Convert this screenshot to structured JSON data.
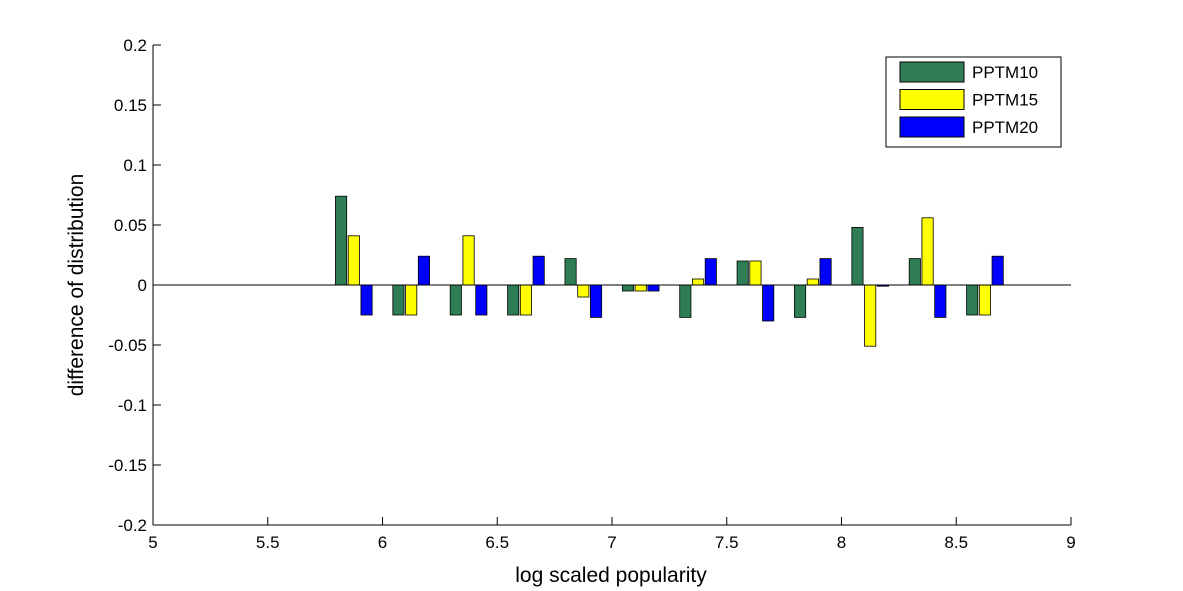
{
  "chart_data": {
    "type": "bar",
    "title": "",
    "xlabel": "log scaled popularity",
    "ylabel": "difference of distribution",
    "xlim": [
      5,
      9
    ],
    "ylim": [
      -0.2,
      0.2
    ],
    "x_ticks": [
      "5",
      "5.5",
      "6",
      "6.5",
      "7",
      "7.5",
      "8",
      "8.5",
      "9"
    ],
    "y_ticks": [
      "-0.2",
      "-0.15",
      "-0.1",
      "-0.05",
      "0",
      "0.05",
      "0.1",
      "0.15",
      "0.2"
    ],
    "grid": false,
    "legend_position": "top-right",
    "x": [
      5.875,
      6.125,
      6.375,
      6.625,
      6.875,
      7.125,
      7.375,
      7.625,
      7.875,
      8.125,
      8.375,
      8.625
    ],
    "series": [
      {
        "name": "PPTM10",
        "color": "#2e7d55",
        "values": [
          0.074,
          -0.025,
          -0.025,
          -0.025,
          0.022,
          -0.005,
          -0.027,
          0.02,
          -0.027,
          0.048,
          0.022,
          -0.025
        ]
      },
      {
        "name": "PPTM15",
        "color": "#ffff00",
        "values": [
          0.041,
          -0.025,
          0.041,
          -0.025,
          -0.01,
          -0.005,
          0.005,
          0.02,
          0.005,
          -0.051,
          0.056,
          -0.025
        ]
      },
      {
        "name": "PPTM20",
        "color": "#0000ff",
        "values": [
          -0.025,
          0.024,
          -0.025,
          0.024,
          -0.027,
          -0.005,
          0.022,
          -0.03,
          0.022,
          -0.001,
          -0.027,
          0.024
        ]
      }
    ]
  }
}
